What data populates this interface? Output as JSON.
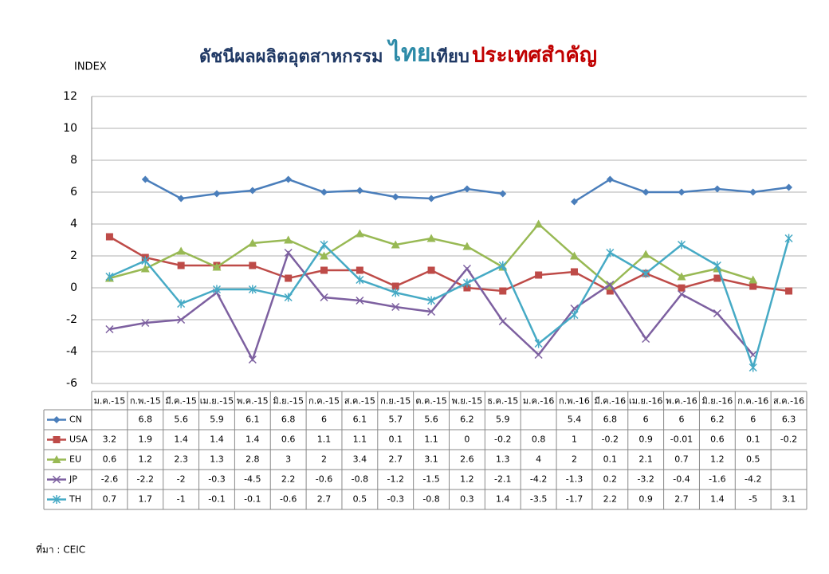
{
  "chart_data": {
    "type": "line",
    "title": [
      "ดัชนีผลผลิตอุตสาหกรรม",
      "ไทย",
      "เทียบ",
      "ประเทศสำคัญ"
    ],
    "y_label": "INDEX",
    "source": "ที่มา : CEIC",
    "categories": [
      "ม.ค.-15",
      "ก.พ.-15",
      "มี.ค.-15",
      "เม.ย.-15",
      "พ.ค.-15",
      "มิ.ย.-15",
      "ก.ค.-15",
      "ส.ค.-15",
      "ก.ย.-15",
      "ต.ค.-15",
      "พ.ย.-15",
      "ธ.ค.-15",
      "ม.ค.-16",
      "ก.พ.-16",
      "มี.ค.-16",
      "เม.ย.-16",
      "พ.ค.-16",
      "มิ.ย.-16",
      "ก.ค.-16",
      "ส.ค.-16"
    ],
    "series": [
      {
        "name": "CN",
        "color": "#4a7ebb",
        "marker": "diamond",
        "values": [
          null,
          6.8,
          5.6,
          5.9,
          6.1,
          6.8,
          6,
          6.1,
          5.7,
          5.6,
          6.2,
          5.9,
          null,
          5.4,
          6.8,
          6,
          6,
          6.2,
          6,
          6.3
        ]
      },
      {
        "name": "USA",
        "color": "#be4b48",
        "marker": "square",
        "values": [
          3.2,
          1.9,
          1.4,
          1.4,
          1.4,
          0.6,
          1.1,
          1.1,
          0.1,
          1.1,
          0,
          -0.2,
          0.8,
          1,
          -0.2,
          0.9,
          -0.01,
          0.6,
          0.1,
          -0.2
        ]
      },
      {
        "name": "EU",
        "color": "#98b954",
        "marker": "triangle",
        "values": [
          0.6,
          1.2,
          2.3,
          1.3,
          2.8,
          3,
          2,
          3.4,
          2.7,
          3.1,
          2.6,
          1.3,
          4,
          2,
          0.1,
          2.1,
          0.7,
          1.2,
          0.5,
          null
        ]
      },
      {
        "name": "JP",
        "color": "#7d60a0",
        "marker": "x",
        "values": [
          -2.6,
          -2.2,
          -2,
          -0.3,
          -4.5,
          2.2,
          -0.6,
          -0.8,
          -1.2,
          -1.5,
          1.2,
          -2.1,
          -4.2,
          -1.3,
          0.2,
          -3.2,
          -0.4,
          -1.6,
          -4.2,
          null
        ]
      },
      {
        "name": "TH",
        "color": "#46aac5",
        "marker": "star",
        "values": [
          0.7,
          1.7,
          -1,
          -0.1,
          -0.1,
          -0.6,
          2.7,
          0.5,
          -0.3,
          -0.8,
          0.3,
          1.4,
          -3.5,
          -1.7,
          2.2,
          0.9,
          2.7,
          1.4,
          -5,
          3.1
        ]
      }
    ],
    "ylim": [
      -6,
      12
    ],
    "yticks": [
      -6,
      -4,
      -2,
      0,
      2,
      4,
      6,
      8,
      10,
      12
    ],
    "grid": true
  }
}
